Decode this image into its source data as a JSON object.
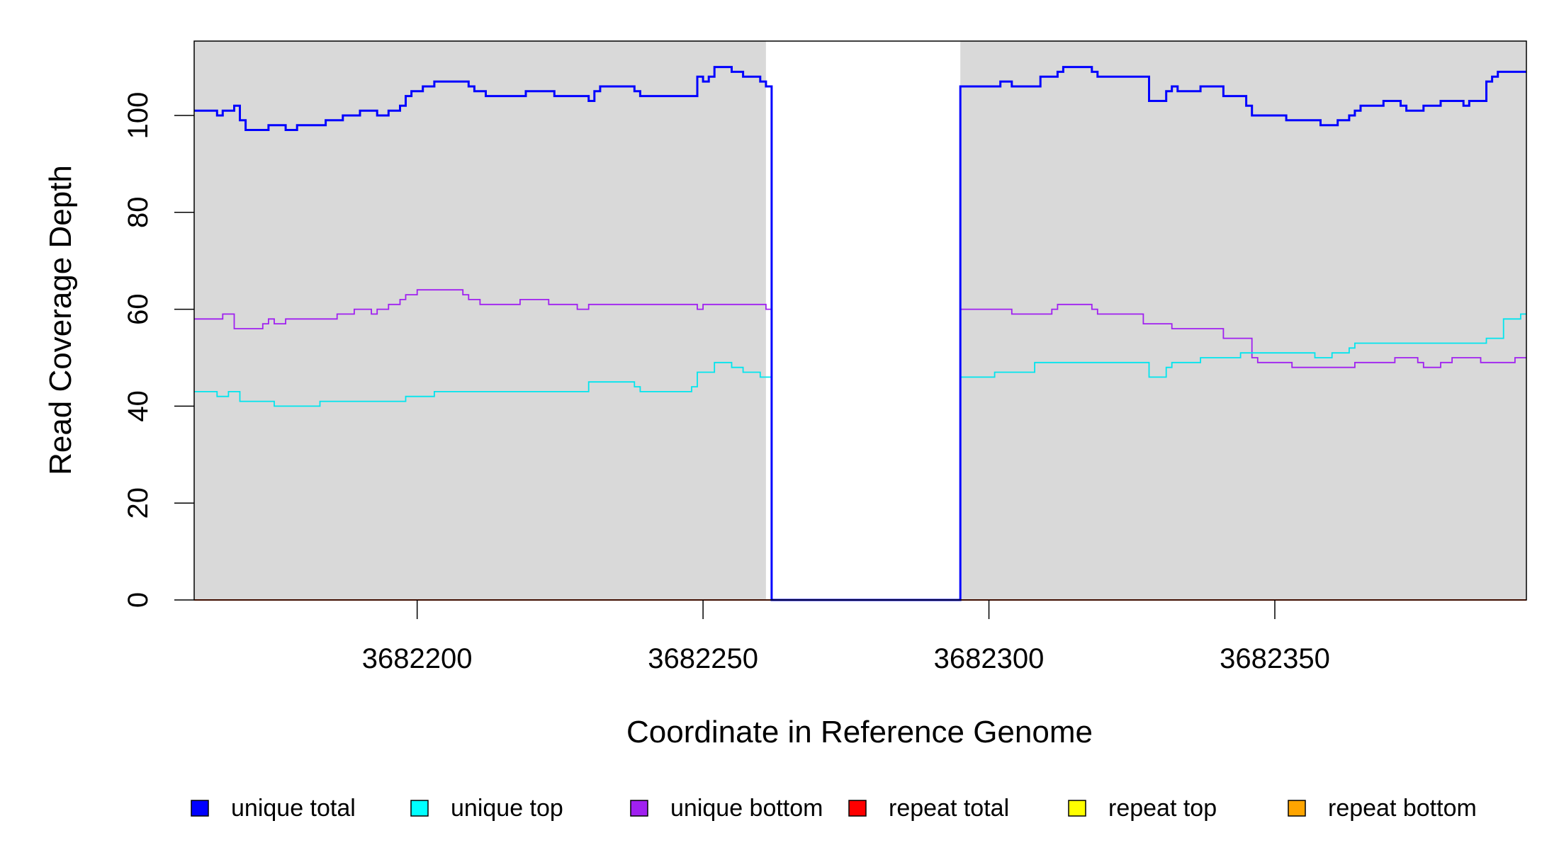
{
  "chart_data": {
    "type": "line",
    "style": "step",
    "xlabel": "Coordinate in Reference Genome",
    "ylabel": "Read Coverage Depth",
    "xlim": [
      3682161,
      3682394
    ],
    "ylim": [
      0,
      115
    ],
    "x_ticks": [
      3682200,
      3682250,
      3682300,
      3682350
    ],
    "y_ticks": [
      0,
      20,
      40,
      60,
      80,
      100
    ],
    "shaded_regions": [
      {
        "from": 3682161,
        "to": 3682261,
        "color": "#d9d9d9"
      },
      {
        "from": 3682295,
        "to": 3682394,
        "color": "#d9d9d9"
      }
    ],
    "series": [
      {
        "name": "unique total",
        "color": "#0000ff",
        "points": [
          [
            3682161,
            101
          ],
          [
            3682165,
            100
          ],
          [
            3682166,
            101
          ],
          [
            3682168,
            102
          ],
          [
            3682169,
            99
          ],
          [
            3682170,
            97
          ],
          [
            3682173,
            97
          ],
          [
            3682174,
            98
          ],
          [
            3682176,
            98
          ],
          [
            3682177,
            97
          ],
          [
            3682179,
            98
          ],
          [
            3682183,
            98
          ],
          [
            3682184,
            99
          ],
          [
            3682186,
            99
          ],
          [
            3682187,
            100
          ],
          [
            3682189,
            100
          ],
          [
            3682190,
            101
          ],
          [
            3682192,
            101
          ],
          [
            3682193,
            100
          ],
          [
            3682194,
            100
          ],
          [
            3682195,
            101
          ],
          [
            3682197,
            102
          ],
          [
            3682198,
            104
          ],
          [
            3682199,
            105
          ],
          [
            3682201,
            106
          ],
          [
            3682203,
            107
          ],
          [
            3682209,
            106
          ],
          [
            3682210,
            105
          ],
          [
            3682212,
            104
          ],
          [
            3682218,
            104
          ],
          [
            3682219,
            105
          ],
          [
            3682223,
            105
          ],
          [
            3682224,
            104
          ],
          [
            3682228,
            104
          ],
          [
            3682230,
            103
          ],
          [
            3682231,
            105
          ],
          [
            3682232,
            106
          ],
          [
            3682238,
            105
          ],
          [
            3682239,
            104
          ],
          [
            3682248,
            104
          ],
          [
            3682249,
            108
          ],
          [
            3682250,
            107
          ],
          [
            3682251,
            108
          ],
          [
            3682252,
            110
          ],
          [
            3682254,
            110
          ],
          [
            3682255,
            109
          ],
          [
            3682257,
            108
          ],
          [
            3682260,
            107
          ],
          [
            3682261,
            106
          ],
          [
            3682262,
            0
          ],
          [
            3682295,
            106
          ],
          [
            3682301,
            106
          ],
          [
            3682302,
            107
          ],
          [
            3682304,
            106
          ],
          [
            3682305,
            106
          ],
          [
            3682309,
            108
          ],
          [
            3682311,
            108
          ],
          [
            3682312,
            109
          ],
          [
            3682313,
            110
          ],
          [
            3682318,
            109
          ],
          [
            3682319,
            108
          ],
          [
            3682322,
            108
          ],
          [
            3682327,
            108
          ],
          [
            3682328,
            103
          ],
          [
            3682330,
            103
          ],
          [
            3682331,
            105
          ],
          [
            3682332,
            106
          ],
          [
            3682333,
            105
          ],
          [
            3682336,
            105
          ],
          [
            3682337,
            106
          ],
          [
            3682340,
            106
          ],
          [
            3682341,
            104
          ],
          [
            3682344,
            104
          ],
          [
            3682345,
            102
          ],
          [
            3682346,
            100
          ],
          [
            3682352,
            99
          ],
          [
            3682358,
            98
          ],
          [
            3682361,
            99
          ],
          [
            3682363,
            100
          ],
          [
            3682364,
            101
          ],
          [
            3682365,
            102
          ],
          [
            3682369,
            103
          ],
          [
            3682372,
            102
          ],
          [
            3682373,
            101
          ],
          [
            3682375,
            101
          ],
          [
            3682376,
            102
          ],
          [
            3682379,
            103
          ],
          [
            3682383,
            102
          ],
          [
            3682384,
            103
          ],
          [
            3682387,
            107
          ],
          [
            3682388,
            108
          ],
          [
            3682389,
            109
          ],
          [
            3682394,
            109
          ]
        ]
      },
      {
        "name": "unique top",
        "color": "#00e5ee",
        "points": [
          [
            3682161,
            43
          ],
          [
            3682165,
            42
          ],
          [
            3682167,
            43
          ],
          [
            3682169,
            41
          ],
          [
            3682175,
            40
          ],
          [
            3682183,
            41
          ],
          [
            3682193,
            41
          ],
          [
            3682198,
            42
          ],
          [
            3682203,
            43
          ],
          [
            3682229,
            43
          ],
          [
            3682230,
            45
          ],
          [
            3682237,
            45
          ],
          [
            3682238,
            44
          ],
          [
            3682239,
            43
          ],
          [
            3682247,
            43
          ],
          [
            3682248,
            44
          ],
          [
            3682249,
            47
          ],
          [
            3682252,
            49
          ],
          [
            3682255,
            48
          ],
          [
            3682257,
            47
          ],
          [
            3682260,
            46
          ],
          [
            3682261,
            46
          ],
          [
            3682262,
            0
          ],
          [
            3682295,
            46
          ],
          [
            3682297,
            46
          ],
          [
            3682301,
            47
          ],
          [
            3682305,
            47
          ],
          [
            3682308,
            49
          ],
          [
            3682316,
            49
          ],
          [
            3682327,
            49
          ],
          [
            3682328,
            46
          ],
          [
            3682330,
            46
          ],
          [
            3682331,
            48
          ],
          [
            3682332,
            49
          ],
          [
            3682337,
            50
          ],
          [
            3682344,
            51
          ],
          [
            3682347,
            51
          ],
          [
            3682356,
            51
          ],
          [
            3682357,
            50
          ],
          [
            3682360,
            51
          ],
          [
            3682363,
            52
          ],
          [
            3682364,
            53
          ],
          [
            3682372,
            53
          ],
          [
            3682383,
            53
          ],
          [
            3682384,
            53
          ],
          [
            3682387,
            54
          ],
          [
            3682390,
            58
          ],
          [
            3682393,
            59
          ],
          [
            3682394,
            59
          ]
        ]
      },
      {
        "name": "unique bottom",
        "color": "#a020f0",
        "points": [
          [
            3682161,
            58
          ],
          [
            3682166,
            59
          ],
          [
            3682168,
            56
          ],
          [
            3682173,
            57
          ],
          [
            3682174,
            58
          ],
          [
            3682175,
            57
          ],
          [
            3682177,
            58
          ],
          [
            3682185,
            58
          ],
          [
            3682186,
            59
          ],
          [
            3682189,
            60
          ],
          [
            3682192,
            59
          ],
          [
            3682193,
            60
          ],
          [
            3682195,
            61
          ],
          [
            3682197,
            62
          ],
          [
            3682198,
            63
          ],
          [
            3682200,
            64
          ],
          [
            3682208,
            63
          ],
          [
            3682209,
            62
          ],
          [
            3682211,
            61
          ],
          [
            3682218,
            62
          ],
          [
            3682223,
            61
          ],
          [
            3682228,
            60
          ],
          [
            3682230,
            61
          ],
          [
            3682248,
            61
          ],
          [
            3682249,
            60
          ],
          [
            3682250,
            61
          ],
          [
            3682260,
            61
          ],
          [
            3682261,
            60
          ],
          [
            3682262,
            0
          ],
          [
            3682295,
            60
          ],
          [
            3682304,
            59
          ],
          [
            3682311,
            60
          ],
          [
            3682312,
            61
          ],
          [
            3682318,
            60
          ],
          [
            3682319,
            59
          ],
          [
            3682327,
            57
          ],
          [
            3682331,
            57
          ],
          [
            3682332,
            56
          ],
          [
            3682340,
            56
          ],
          [
            3682341,
            54
          ],
          [
            3682345,
            54
          ],
          [
            3682346,
            50
          ],
          [
            3682347,
            49
          ],
          [
            3682353,
            48
          ],
          [
            3682364,
            49
          ],
          [
            3682368,
            49
          ],
          [
            3682371,
            50
          ],
          [
            3682375,
            49
          ],
          [
            3682376,
            48
          ],
          [
            3682379,
            49
          ],
          [
            3682381,
            50
          ],
          [
            3682386,
            49
          ],
          [
            3682391,
            49
          ],
          [
            3682392,
            50
          ],
          [
            3682394,
            50
          ]
        ]
      },
      {
        "name": "repeat total",
        "color": "#ff0000",
        "points": [
          [
            3682161,
            0
          ],
          [
            3682394,
            0
          ]
        ]
      },
      {
        "name": "repeat top",
        "color": "#ffff00",
        "points": [
          [
            3682161,
            0
          ],
          [
            3682394,
            0
          ]
        ]
      },
      {
        "name": "repeat bottom",
        "color": "#ffa500",
        "points": [
          [
            3682161,
            0
          ],
          [
            3682394,
            0
          ]
        ]
      }
    ],
    "legend": {
      "position": "bottom",
      "entries": [
        {
          "label": "unique total",
          "color": "#0000ff"
        },
        {
          "label": "unique top",
          "color": "#00ffff"
        },
        {
          "label": "unique bottom",
          "color": "#a020f0"
        },
        {
          "label": "repeat total",
          "color": "#ff0000"
        },
        {
          "label": "repeat top",
          "color": "#ffff00"
        },
        {
          "label": "repeat bottom",
          "color": "#ffa500"
        }
      ]
    }
  }
}
